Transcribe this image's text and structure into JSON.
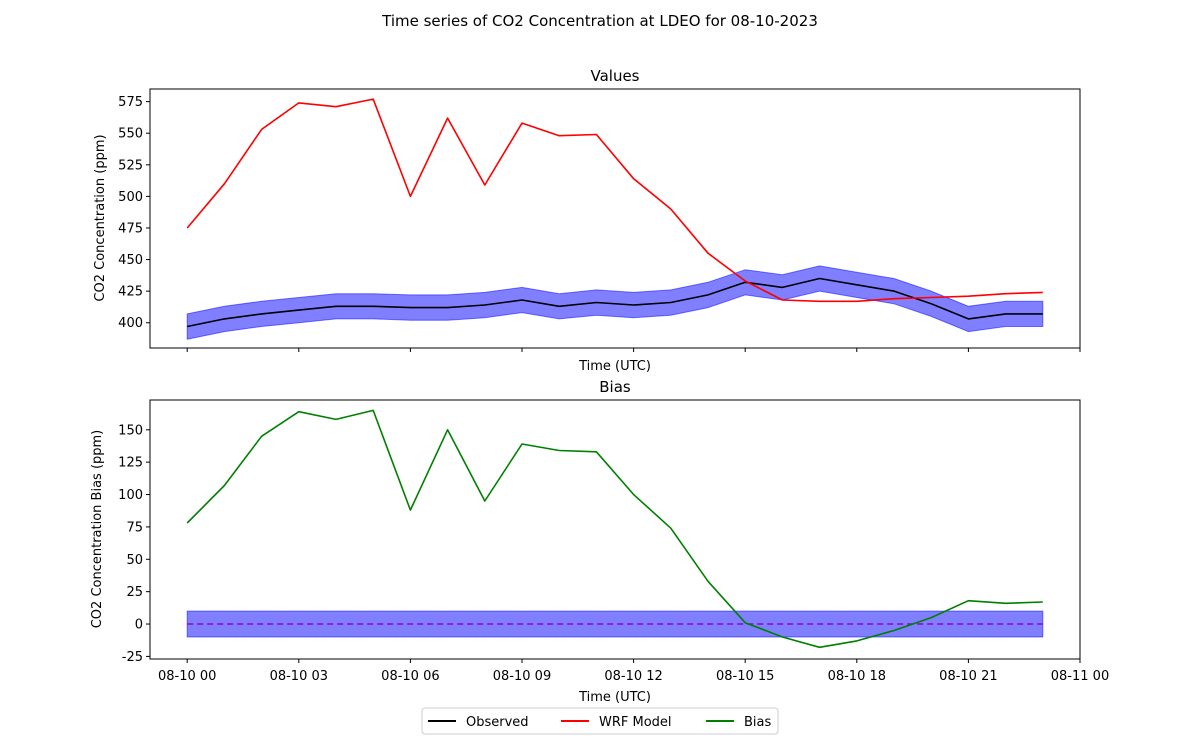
{
  "figure": {
    "suptitle": "Time series of CO2 Concentration at LDEO for 08-10-2023"
  },
  "legend": {
    "placement": "bottom-center",
    "entries": [
      {
        "label": "Observed",
        "color": "#000000"
      },
      {
        "label": "WRF Model",
        "color": "#ff0000"
      },
      {
        "label": "Bias",
        "color": "#008000"
      }
    ]
  },
  "chart_data": [
    {
      "type": "line",
      "title": "Values",
      "xlabel": "Time (UTC)",
      "ylabel": "CO2 Concentration (ppm)",
      "x": [
        "08-10 00",
        "08-10 01",
        "08-10 02",
        "08-10 03",
        "08-10 04",
        "08-10 05",
        "08-10 06",
        "08-10 07",
        "08-10 08",
        "08-10 09",
        "08-10 10",
        "08-10 11",
        "08-10 12",
        "08-10 13",
        "08-10 14",
        "08-10 15",
        "08-10 16",
        "08-10 17",
        "08-10 18",
        "08-10 19",
        "08-10 20",
        "08-10 21",
        "08-10 22",
        "08-10 23"
      ],
      "xlim": [
        -1,
        24
      ],
      "ylim": [
        380,
        585
      ],
      "xticks": [
        0,
        3,
        6,
        9,
        12,
        15,
        18,
        21,
        24
      ],
      "xtick_labels": [
        "",
        "",
        "",
        "",
        "",
        "",
        "",
        "",
        ""
      ],
      "yticks": [
        400,
        425,
        450,
        475,
        500,
        525,
        550,
        575
      ],
      "series": [
        {
          "name": "Observed",
          "color": "#000000",
          "values": [
            397,
            403,
            407,
            410,
            413,
            413,
            412,
            412,
            414,
            418,
            413,
            416,
            414,
            416,
            422,
            432,
            428,
            435,
            430,
            425,
            415,
            403,
            407,
            407
          ],
          "band": {
            "color": "#0000ff",
            "alpha": 0.5,
            "half_width": 10
          }
        },
        {
          "name": "WRF Model",
          "color": "#ff0000",
          "values": [
            475,
            510,
            553,
            574,
            571,
            577,
            500,
            562,
            509,
            558,
            548,
            549,
            514,
            490,
            455,
            433,
            418,
            417,
            417,
            419,
            420,
            421,
            423,
            424
          ]
        }
      ]
    },
    {
      "type": "line",
      "title": "Bias",
      "xlabel": "Time (UTC)",
      "ylabel": "CO2 Concentration Bias (ppm)",
      "x": [
        "08-10 00",
        "08-10 01",
        "08-10 02",
        "08-10 03",
        "08-10 04",
        "08-10 05",
        "08-10 06",
        "08-10 07",
        "08-10 08",
        "08-10 09",
        "08-10 10",
        "08-10 11",
        "08-10 12",
        "08-10 13",
        "08-10 14",
        "08-10 15",
        "08-10 16",
        "08-10 17",
        "08-10 18",
        "08-10 19",
        "08-10 20",
        "08-10 21",
        "08-10 22",
        "08-10 23"
      ],
      "xlim": [
        -1,
        24
      ],
      "ylim": [
        -27,
        173
      ],
      "xticks": [
        0,
        3,
        6,
        9,
        12,
        15,
        18,
        21,
        24
      ],
      "xtick_labels": [
        "08-10 00",
        "08-10 03",
        "08-10 06",
        "08-10 09",
        "08-10 12",
        "08-10 15",
        "08-10 18",
        "08-10 21",
        "08-11 00"
      ],
      "yticks": [
        -25,
        0,
        25,
        50,
        75,
        100,
        125,
        150
      ],
      "series": [
        {
          "name": "Bias",
          "color": "#008000",
          "values": [
            78,
            107,
            145,
            164,
            158,
            165,
            88,
            150,
            95,
            139,
            134,
            133,
            100,
            74,
            33,
            1,
            -10,
            -18,
            -13,
            -5,
            5,
            18,
            16,
            17
          ]
        }
      ],
      "zero_line": {
        "value": 0,
        "color": "#9400d3",
        "style": "dashed"
      },
      "zero_band": {
        "low": -10,
        "high": 10,
        "color": "#0000ff",
        "alpha": 0.5,
        "x_start": 0,
        "x_end": 23
      }
    }
  ]
}
